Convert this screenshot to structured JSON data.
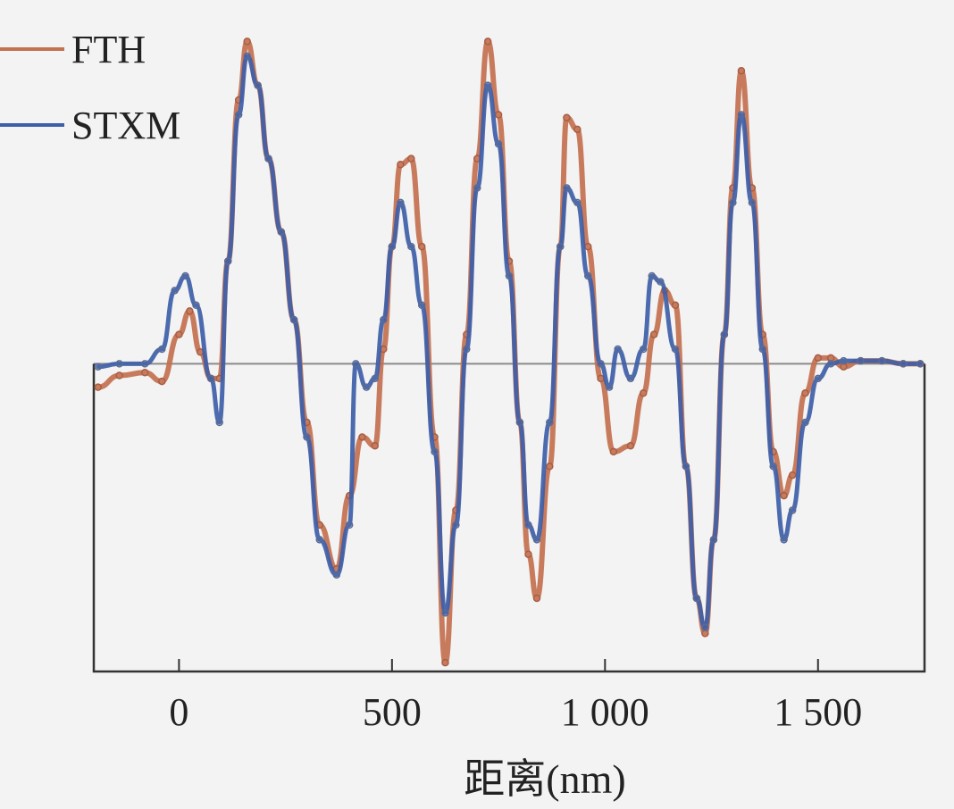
{
  "chart_data": {
    "type": "line",
    "xlabel": "距离(nm)",
    "ylabel": "",
    "xlim": [
      -200,
      1750
    ],
    "ylim": [
      -1.05,
      1.15
    ],
    "xticks": [
      0,
      500,
      1000,
      1500
    ],
    "xtick_labels": [
      "0",
      "500",
      "1 000",
      "1 500"
    ],
    "legend": "top-left",
    "baseline_y": 0,
    "series": [
      {
        "name": "FTH",
        "color": "#c4714f",
        "x": [
          -190,
          -140,
          -80,
          -40,
          0,
          25,
          50,
          75,
          95,
          115,
          140,
          160,
          185,
          210,
          240,
          270,
          300,
          330,
          370,
          400,
          430,
          460,
          480,
          500,
          520,
          545,
          570,
          600,
          625,
          650,
          675,
          700,
          725,
          750,
          775,
          800,
          820,
          840,
          870,
          895,
          910,
          935,
          960,
          990,
          1020,
          1060,
          1090,
          1115,
          1140,
          1165,
          1190,
          1215,
          1235,
          1255,
          1280,
          1300,
          1320,
          1345,
          1370,
          1395,
          1420,
          1440,
          1470,
          1500,
          1530,
          1560,
          1600,
          1650,
          1700,
          1740
        ],
        "y": [
          -0.08,
          -0.04,
          -0.03,
          -0.06,
          0.1,
          0.18,
          0.04,
          -0.05,
          -0.05,
          0.35,
          0.9,
          1.1,
          0.95,
          0.7,
          0.45,
          0.15,
          -0.2,
          -0.55,
          -0.7,
          -0.45,
          -0.25,
          -0.28,
          0.05,
          0.4,
          0.68,
          0.7,
          0.4,
          -0.25,
          -1.02,
          -0.5,
          0.1,
          0.7,
          1.1,
          0.85,
          0.35,
          -0.2,
          -0.65,
          -0.8,
          -0.35,
          0.4,
          0.84,
          0.8,
          0.4,
          -0.05,
          -0.3,
          -0.28,
          -0.1,
          0.1,
          0.25,
          0.2,
          -0.35,
          -0.8,
          -0.92,
          -0.6,
          0.1,
          0.6,
          1.0,
          0.6,
          0.1,
          -0.3,
          -0.45,
          -0.38,
          -0.1,
          0.02,
          0.02,
          -0.01,
          0.01,
          0.01,
          0.0,
          0.0
        ]
      },
      {
        "name": "STXM",
        "color": "#3e5ea8",
        "x": [
          -190,
          -140,
          -80,
          -40,
          -10,
          15,
          40,
          75,
          95,
          115,
          140,
          160,
          185,
          210,
          240,
          270,
          300,
          330,
          370,
          400,
          415,
          440,
          460,
          480,
          500,
          520,
          545,
          570,
          600,
          625,
          650,
          675,
          700,
          725,
          750,
          775,
          800,
          820,
          840,
          870,
          895,
          910,
          935,
          960,
          990,
          1010,
          1030,
          1060,
          1090,
          1110,
          1130,
          1165,
          1190,
          1215,
          1235,
          1255,
          1280,
          1300,
          1320,
          1345,
          1370,
          1395,
          1420,
          1440,
          1470,
          1500,
          1530,
          1560,
          1600,
          1650,
          1700,
          1740
        ],
        "y": [
          -0.01,
          0.0,
          0.0,
          0.05,
          0.25,
          0.3,
          0.2,
          -0.05,
          -0.2,
          0.35,
          0.85,
          1.05,
          0.95,
          0.7,
          0.45,
          0.15,
          -0.25,
          -0.6,
          -0.72,
          -0.55,
          0.0,
          -0.08,
          -0.05,
          0.15,
          0.4,
          0.55,
          0.4,
          0.2,
          -0.3,
          -0.85,
          -0.55,
          0.05,
          0.6,
          0.95,
          0.75,
          0.3,
          -0.2,
          -0.55,
          -0.6,
          -0.2,
          0.4,
          0.6,
          0.55,
          0.3,
          0.0,
          -0.08,
          0.05,
          -0.05,
          0.05,
          0.3,
          0.28,
          0.05,
          -0.35,
          -0.8,
          -0.9,
          -0.6,
          0.1,
          0.55,
          0.85,
          0.55,
          0.05,
          -0.35,
          -0.6,
          -0.5,
          -0.2,
          -0.05,
          0.0,
          0.01,
          0.01,
          0.01,
          0.0,
          0.0
        ]
      }
    ]
  }
}
